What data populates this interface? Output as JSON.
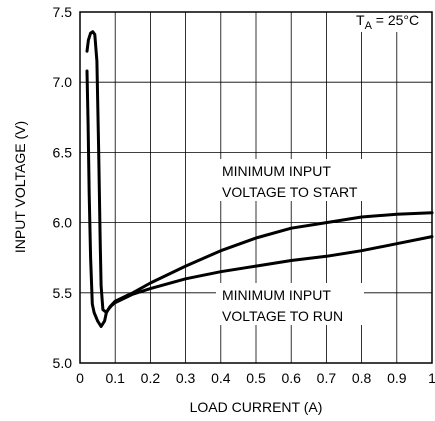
{
  "chart_data": {
    "type": "line",
    "xlabel": "LOAD CURRENT (A)",
    "ylabel": "INPUT VOLTAGE (V)",
    "xlim": [
      0,
      1
    ],
    "ylim": [
      5.0,
      7.5
    ],
    "grid": true,
    "x_ticks": [
      0,
      0.1,
      0.2,
      0.3,
      0.4,
      0.5,
      0.6,
      0.7,
      0.8,
      0.9,
      1
    ],
    "x_tick_labels": [
      "0",
      "0.1",
      "0.2",
      "0.3",
      "0.4",
      "0.5",
      "0.6",
      "0.7",
      "0.8",
      "0.9",
      "1"
    ],
    "y_ticks": [
      5.0,
      5.5,
      6.0,
      6.5,
      7.0,
      7.5
    ],
    "y_tick_labels": [
      "5.0",
      "5.5",
      "6.0",
      "6.5",
      "7.0",
      "7.5"
    ],
    "condition": {
      "main": "T",
      "sub": "A",
      "rest": " = 25°C"
    },
    "annotations": {
      "start": [
        "MINIMUM INPUT",
        "VOLTAGE TO START"
      ],
      "run": [
        "MINIMUM INPUT",
        "VOLTAGE TO RUN"
      ]
    },
    "series": [
      {
        "x": [
          0.02,
          0.024,
          0.03,
          0.036,
          0.042,
          0.048,
          0.053,
          0.057,
          0.06,
          0.065,
          0.075,
          0.085,
          0.1,
          0.15,
          0.2,
          0.3,
          0.4,
          0.5,
          0.6,
          0.7,
          0.8,
          0.9,
          1.0
        ],
        "y": [
          7.22,
          7.3,
          7.35,
          7.36,
          7.34,
          7.15,
          6.5,
          5.9,
          5.55,
          5.38,
          5.36,
          5.4,
          5.44,
          5.5,
          5.57,
          5.69,
          5.8,
          5.89,
          5.96,
          6.0,
          6.04,
          6.06,
          6.07
        ]
      },
      {
        "x": [
          0.02,
          0.023,
          0.026,
          0.03,
          0.035,
          0.04,
          0.05,
          0.06,
          0.07,
          0.075,
          0.08,
          0.09,
          0.1,
          0.15,
          0.2,
          0.3,
          0.4,
          0.5,
          0.6,
          0.7,
          0.8,
          0.9,
          1.0
        ],
        "y": [
          7.08,
          6.7,
          6.2,
          5.75,
          5.42,
          5.36,
          5.3,
          5.26,
          5.3,
          5.36,
          5.38,
          5.41,
          5.43,
          5.49,
          5.53,
          5.6,
          5.65,
          5.69,
          5.73,
          5.76,
          5.8,
          5.85,
          5.9
        ]
      }
    ]
  }
}
